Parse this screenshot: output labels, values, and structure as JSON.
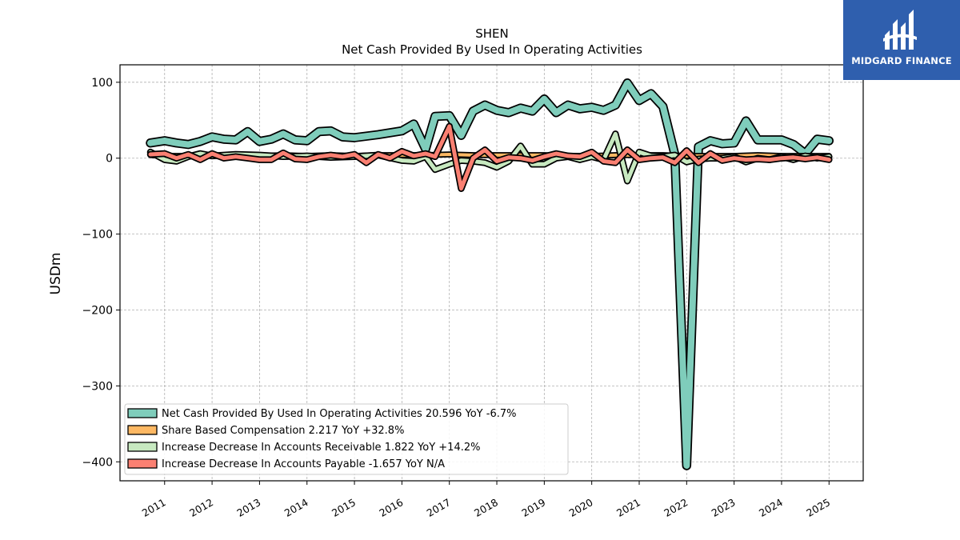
{
  "logo": {
    "text": "MIDGARD FINANCE",
    "color": "#2f5fae"
  },
  "chart_data": {
    "type": "line",
    "title": "SHEN",
    "subtitle": "Net Cash Provided By Used In Operating Activities",
    "xlabel": "",
    "ylabel": "USDm",
    "ylim": [
      -425,
      123
    ],
    "xlim": [
      2010.06,
      2025.72
    ],
    "yticks": [
      100,
      0,
      -100,
      -200,
      -300,
      -400
    ],
    "ytick_labels": [
      "100",
      "0",
      "−100",
      "−200",
      "−300",
      "−400"
    ],
    "xtick_labels": [
      "2011",
      "2012",
      "2013",
      "2014",
      "2015",
      "2016",
      "2017",
      "2018",
      "2019",
      "2020",
      "2021",
      "2022",
      "2023",
      "2024",
      "2025"
    ],
    "grid": true,
    "legend_position": "lower-left",
    "series": [
      {
        "name": "Net Cash Provided By Used In Operating Activities  20.596 YoY -6.7%",
        "color": "#7fcdbb",
        "stroke_width": 8,
        "order": 0,
        "points": [
          [
            2010.7,
            20
          ],
          [
            2011.0,
            23
          ],
          [
            2011.25,
            20
          ],
          [
            2011.5,
            18
          ],
          [
            2011.75,
            22
          ],
          [
            2012.0,
            28
          ],
          [
            2012.25,
            25
          ],
          [
            2012.5,
            24
          ],
          [
            2012.75,
            35
          ],
          [
            2013.0,
            22
          ],
          [
            2013.25,
            25
          ],
          [
            2013.5,
            32
          ],
          [
            2013.75,
            24
          ],
          [
            2014.0,
            23
          ],
          [
            2014.25,
            35
          ],
          [
            2014.5,
            36
          ],
          [
            2014.75,
            28
          ],
          [
            2015.0,
            27
          ],
          [
            2015.5,
            31
          ],
          [
            2016.0,
            36
          ],
          [
            2016.25,
            45
          ],
          [
            2016.5,
            12
          ],
          [
            2016.7,
            55
          ],
          [
            2017.0,
            56
          ],
          [
            2017.25,
            30
          ],
          [
            2017.5,
            62
          ],
          [
            2017.75,
            70
          ],
          [
            2018.0,
            63
          ],
          [
            2018.25,
            60
          ],
          [
            2018.5,
            66
          ],
          [
            2018.75,
            62
          ],
          [
            2019.0,
            78
          ],
          [
            2019.25,
            60
          ],
          [
            2019.5,
            70
          ],
          [
            2019.75,
            65
          ],
          [
            2020.0,
            67
          ],
          [
            2020.25,
            63
          ],
          [
            2020.5,
            70
          ],
          [
            2020.75,
            99
          ],
          [
            2021.0,
            76
          ],
          [
            2021.25,
            85
          ],
          [
            2021.5,
            68
          ],
          [
            2021.75,
            5
          ],
          [
            2022.0,
            -405
          ],
          [
            2022.25,
            15
          ],
          [
            2022.5,
            23
          ],
          [
            2022.75,
            19
          ],
          [
            2023.0,
            20
          ],
          [
            2023.25,
            49
          ],
          [
            2023.5,
            24
          ],
          [
            2023.75,
            24
          ],
          [
            2024.0,
            24
          ],
          [
            2024.25,
            18
          ],
          [
            2024.5,
            6
          ],
          [
            2024.75,
            25
          ],
          [
            2025.0,
            23
          ]
        ]
      },
      {
        "name": "Share Based Compensation  2.217 YoY +32.8%",
        "color": "#fdb863",
        "stroke_width": 4,
        "order": 1,
        "points": [
          [
            2010.7,
            4
          ],
          [
            2011.0,
            3
          ],
          [
            2011.5,
            3
          ],
          [
            2012.0,
            3
          ],
          [
            2012.5,
            4
          ],
          [
            2013.0,
            3
          ],
          [
            2013.5,
            4
          ],
          [
            2014.0,
            3
          ],
          [
            2014.5,
            4
          ],
          [
            2015.0,
            3
          ],
          [
            2015.5,
            4
          ],
          [
            2016.0,
            4
          ],
          [
            2016.5,
            4
          ],
          [
            2017.0,
            5
          ],
          [
            2017.5,
            4
          ],
          [
            2018.0,
            4
          ],
          [
            2018.5,
            4
          ],
          [
            2019.0,
            4
          ],
          [
            2019.5,
            3
          ],
          [
            2020.0,
            3
          ],
          [
            2020.5,
            4
          ],
          [
            2021.0,
            4
          ],
          [
            2021.5,
            4
          ],
          [
            2022.0,
            3
          ],
          [
            2022.5,
            3
          ],
          [
            2023.0,
            3
          ],
          [
            2023.5,
            4
          ],
          [
            2024.0,
            3
          ],
          [
            2024.5,
            3
          ],
          [
            2025.0,
            3
          ]
        ]
      },
      {
        "name": "Increase Decrease In Accounts Receivable  1.822 YoY +14.2%",
        "color": "#c7e9c0",
        "stroke_width": 5,
        "order": 2,
        "points": [
          [
            2010.7,
            8
          ],
          [
            2011.0,
            -2
          ],
          [
            2011.25,
            -4
          ],
          [
            2011.5,
            2
          ],
          [
            2011.75,
            6
          ],
          [
            2012.0,
            3
          ],
          [
            2012.5,
            5
          ],
          [
            2013.0,
            4
          ],
          [
            2013.5,
            2
          ],
          [
            2014.0,
            3
          ],
          [
            2014.5,
            1
          ],
          [
            2015.0,
            2
          ],
          [
            2015.5,
            4
          ],
          [
            2016.0,
            -3
          ],
          [
            2016.25,
            -4
          ],
          [
            2016.5,
            2
          ],
          [
            2016.7,
            -15
          ],
          [
            2017.0,
            -8
          ],
          [
            2017.25,
            -3
          ],
          [
            2017.5,
            -4
          ],
          [
            2017.75,
            -6
          ],
          [
            2018.0,
            -12
          ],
          [
            2018.25,
            -4
          ],
          [
            2018.5,
            16
          ],
          [
            2018.75,
            -8
          ],
          [
            2019.0,
            -8
          ],
          [
            2019.25,
            0
          ],
          [
            2019.5,
            2
          ],
          [
            2019.75,
            -2
          ],
          [
            2020.0,
            2
          ],
          [
            2020.25,
            -2
          ],
          [
            2020.5,
            32
          ],
          [
            2020.75,
            -30
          ],
          [
            2021.0,
            8
          ],
          [
            2021.25,
            3
          ],
          [
            2021.5,
            2
          ],
          [
            2021.75,
            4
          ],
          [
            2022.0,
            -5
          ],
          [
            2022.25,
            -1
          ],
          [
            2022.5,
            0
          ],
          [
            2022.75,
            0
          ],
          [
            2023.0,
            2
          ],
          [
            2023.25,
            -5
          ],
          [
            2023.5,
            0
          ],
          [
            2023.75,
            -2
          ],
          [
            2024.0,
            2
          ],
          [
            2024.25,
            -2
          ],
          [
            2024.5,
            3
          ],
          [
            2024.75,
            0
          ],
          [
            2025.0,
            2
          ]
        ]
      },
      {
        "name": "Increase Decrease In Accounts Payable  -1.657 YoY N/A",
        "color": "#fa8072",
        "stroke_width": 5,
        "order": 3,
        "points": [
          [
            2010.7,
            5
          ],
          [
            2011.0,
            6
          ],
          [
            2011.25,
            0
          ],
          [
            2011.5,
            5
          ],
          [
            2011.75,
            -2
          ],
          [
            2012.0,
            6
          ],
          [
            2012.25,
            0
          ],
          [
            2012.5,
            2
          ],
          [
            2012.75,
            0
          ],
          [
            2013.0,
            -2
          ],
          [
            2013.25,
            -2
          ],
          [
            2013.5,
            7
          ],
          [
            2013.75,
            -1
          ],
          [
            2014.0,
            -2
          ],
          [
            2014.25,
            2
          ],
          [
            2014.5,
            4
          ],
          [
            2014.75,
            2
          ],
          [
            2015.0,
            5
          ],
          [
            2015.25,
            -6
          ],
          [
            2015.5,
            5
          ],
          [
            2015.75,
            0
          ],
          [
            2016.0,
            9
          ],
          [
            2016.25,
            3
          ],
          [
            2016.5,
            6
          ],
          [
            2016.7,
            2
          ],
          [
            2017.0,
            42
          ],
          [
            2017.25,
            -40
          ],
          [
            2017.5,
            0
          ],
          [
            2017.75,
            11
          ],
          [
            2018.0,
            -4
          ],
          [
            2018.25,
            1
          ],
          [
            2018.5,
            0
          ],
          [
            2018.75,
            -3
          ],
          [
            2019.0,
            2
          ],
          [
            2019.25,
            6
          ],
          [
            2019.5,
            3
          ],
          [
            2019.75,
            2
          ],
          [
            2020.0,
            8
          ],
          [
            2020.25,
            -4
          ],
          [
            2020.5,
            -6
          ],
          [
            2020.75,
            11
          ],
          [
            2021.0,
            -2
          ],
          [
            2021.25,
            0
          ],
          [
            2021.5,
            1
          ],
          [
            2021.75,
            -6
          ],
          [
            2022.0,
            10
          ],
          [
            2022.25,
            -6
          ],
          [
            2022.5,
            6
          ],
          [
            2022.75,
            -3
          ],
          [
            2023.0,
            0
          ],
          [
            2023.25,
            -2
          ],
          [
            2023.5,
            -1
          ],
          [
            2023.75,
            -2
          ],
          [
            2024.0,
            0
          ],
          [
            2024.25,
            1
          ],
          [
            2024.5,
            -1
          ],
          [
            2024.75,
            1
          ],
          [
            2025.0,
            -2
          ]
        ]
      }
    ]
  }
}
